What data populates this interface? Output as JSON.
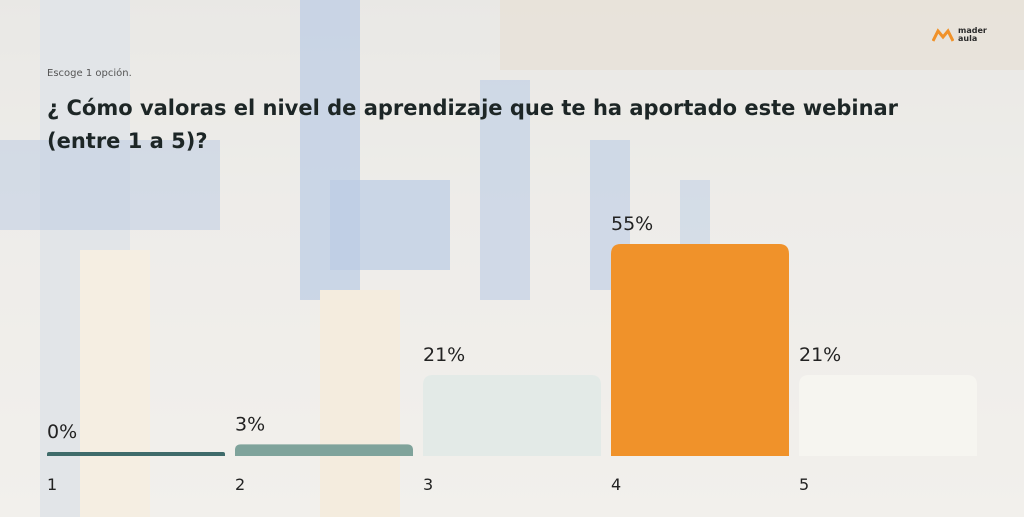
{
  "instruction": "Escoge 1 opción.",
  "logo": {
    "top": "mader",
    "bottom": "aula"
  },
  "chart_data": {
    "type": "bar",
    "title": "¿ Cómo valoras el nivel de aprendizaje que te ha aportado este webinar (entre 1 a 5)?",
    "categories": [
      "1",
      "2",
      "3",
      "4",
      "5"
    ],
    "values": [
      0,
      3,
      21,
      55,
      21
    ],
    "value_labels": [
      "0%",
      "3%",
      "21%",
      "55%",
      "21%"
    ],
    "colors": [
      "#3f6b6a",
      "#7fa39b",
      "#e3eae7",
      "#f0922a",
      "#f6f5f0"
    ]
  }
}
